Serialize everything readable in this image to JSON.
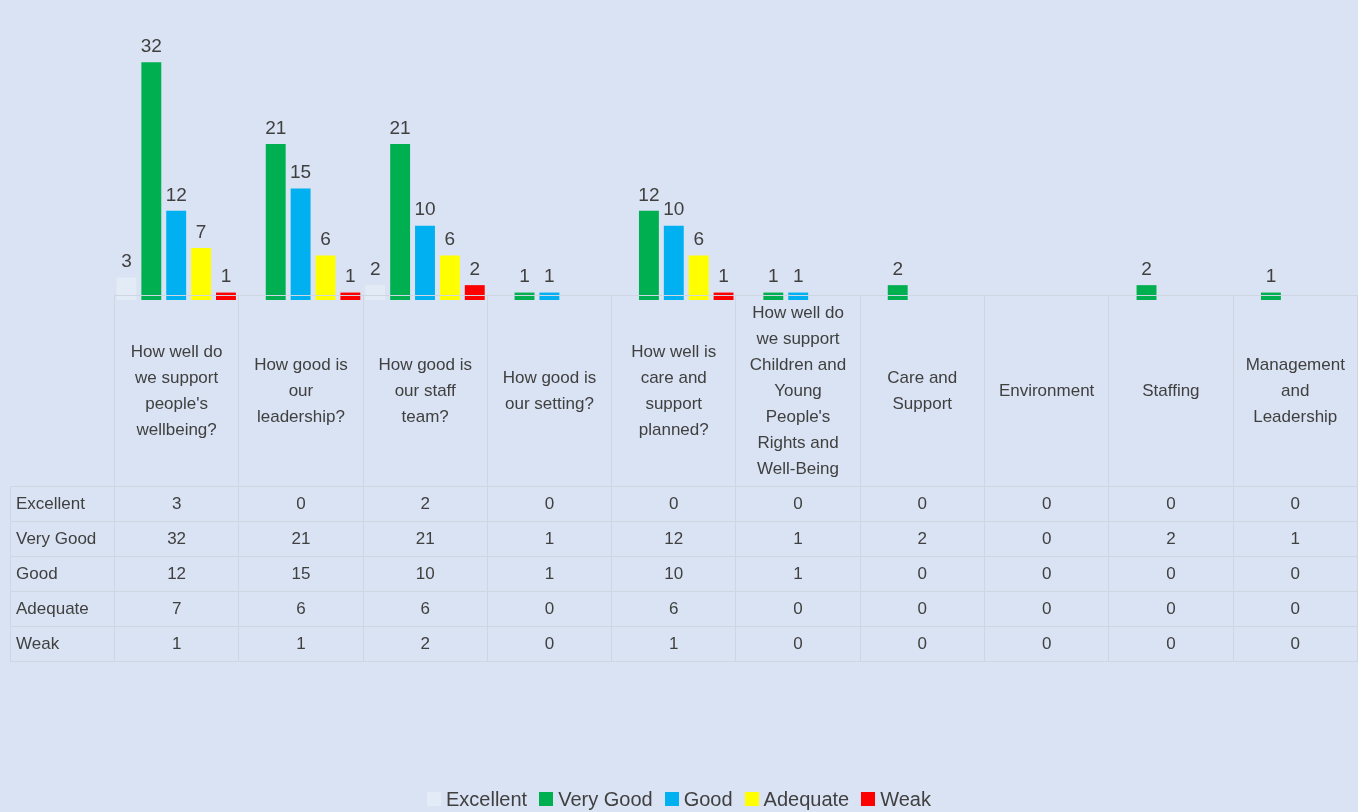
{
  "chart_data": {
    "type": "bar",
    "categories": [
      "How well do we support people's wellbeing?",
      "How good is our leadership?",
      "How good is our staff team?",
      "How good is our setting?",
      "How well is care and support planned?",
      "How well do we support Children and Young People's Rights and Well-Being",
      "Care and Support",
      "Environment",
      "Staffing",
      "Management and Leadership"
    ],
    "series": [
      {
        "name": "Excellent",
        "color": "#e3ebf6",
        "values": [
          3,
          0,
          2,
          0,
          0,
          0,
          0,
          0,
          0,
          0
        ],
        "value_labels": [
          "3",
          "0",
          "2",
          "0",
          "0",
          "0",
          "0",
          "0",
          "0",
          "0"
        ]
      },
      {
        "name": "Very Good",
        "color": "#00b050",
        "values": [
          32,
          21,
          21,
          1,
          12,
          1,
          2,
          0,
          2,
          1
        ],
        "value_labels": [
          "32",
          "21",
          "21",
          "1",
          "12",
          "1",
          "2",
          "0",
          "2",
          "1"
        ]
      },
      {
        "name": "Good",
        "color": "#00b0f0",
        "values": [
          12,
          15,
          10,
          1,
          10,
          1,
          0,
          0,
          0,
          0
        ],
        "value_labels": [
          "12",
          "15",
          "10",
          "1",
          "10",
          "1",
          "0",
          "0",
          "0",
          "0"
        ]
      },
      {
        "name": "Adequate",
        "color": "#ffff00",
        "values": [
          7,
          6,
          6,
          0,
          6,
          0,
          0,
          0,
          0,
          0
        ],
        "value_labels": [
          "7",
          "6",
          "6",
          "0",
          "6",
          "0",
          "0",
          "0",
          "0",
          "0"
        ]
      },
      {
        "name": "Weak",
        "color": "#ff0000",
        "values": [
          1,
          1,
          2,
          0,
          1,
          0,
          0,
          0,
          0,
          0
        ],
        "value_labels": [
          "1",
          "1",
          "2",
          "0",
          "1",
          "0",
          "0",
          "0",
          "0",
          "0"
        ]
      }
    ],
    "data_labels": true,
    "grid": false,
    "legend": "bottom"
  }
}
